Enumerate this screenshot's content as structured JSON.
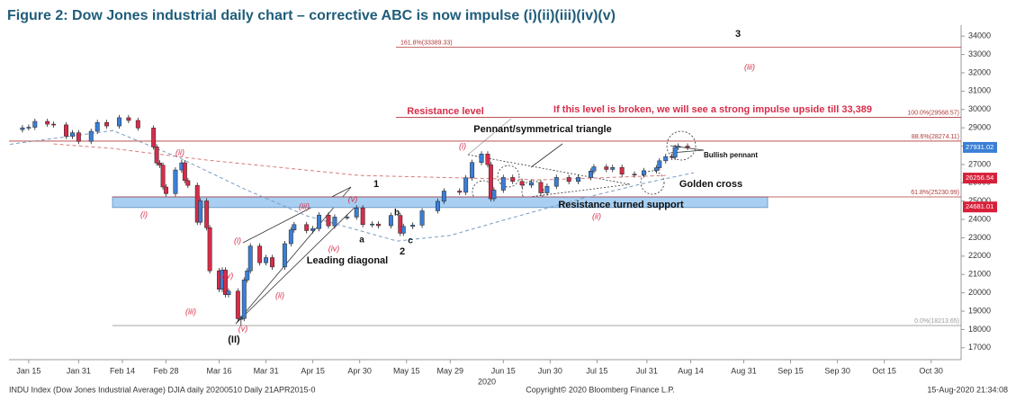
{
  "chart_data": {
    "type": "candlestick",
    "title": "Figure 2: Dow Jones industrial daily chart – corrective ABC is now impulse (i)(ii)(iii)(iv)(v)",
    "year_label": "2020",
    "footer_left": "INDU Index (Dow Jones Industrial Average) DJIA daily 20200510  Daily 21APR2015-0",
    "footer_center": "Copyright© 2020 Bloomberg Finance L.P.",
    "footer_right": "15-Aug-2020 21:34:08",
    "xlim": [
      8.7,
      313.6
    ],
    "ylim": [
      16500,
      34500
    ],
    "xticks": [
      {
        "value": 15,
        "label": "Jan 15"
      },
      {
        "value": 31,
        "label": "Jan 31"
      },
      {
        "value": 45,
        "label": "Feb 14"
      },
      {
        "value": 59,
        "label": "Feb 28"
      },
      {
        "value": 76,
        "label": "Mar 16"
      },
      {
        "value": 91,
        "label": "Mar 31"
      },
      {
        "value": 106,
        "label": "Apr 15"
      },
      {
        "value": 121,
        "label": "Apr 30"
      },
      {
        "value": 136,
        "label": "May 15"
      },
      {
        "value": 150,
        "label": "May 29"
      },
      {
        "value": 167,
        "label": "Jun 15"
      },
      {
        "value": 182,
        "label": "Jun 30"
      },
      {
        "value": 197,
        "label": "Jul 15"
      },
      {
        "value": 213,
        "label": "Jul 31"
      },
      {
        "value": 227,
        "label": "Aug 14"
      },
      {
        "value": 244,
        "label": "Aug 31"
      },
      {
        "value": 259,
        "label": "Sep 15"
      },
      {
        "value": 274,
        "label": "Sep 30"
      },
      {
        "value": 289,
        "label": "Oct 15"
      },
      {
        "value": 304,
        "label": "Oct 30"
      }
    ],
    "yticks": [
      17000,
      18000,
      19000,
      20000,
      21000,
      22000,
      23000,
      24000,
      25000,
      26000,
      27000,
      28000,
      29000,
      30000,
      31000,
      32000,
      33000,
      34000
    ],
    "up_color": "#3a7fd5",
    "down_color": "#d62d4a",
    "x": [
      13,
      15,
      17,
      21,
      23,
      27,
      29,
      31,
      35,
      37,
      40,
      44,
      47,
      50,
      55,
      56,
      57,
      58,
      59,
      62,
      64,
      65,
      66,
      69,
      70,
      72,
      73,
      76,
      77,
      78,
      79,
      82,
      83,
      84,
      85,
      86,
      89,
      91,
      93,
      97,
      99,
      100,
      104,
      106,
      108,
      111,
      113,
      117,
      120,
      122,
      125,
      127,
      131,
      134,
      135,
      138,
      141,
      146,
      148,
      153,
      155,
      157,
      160,
      162,
      163,
      164,
      167,
      170,
      173,
      176,
      179,
      181,
      184,
      188,
      191,
      195,
      196,
      200,
      202,
      205,
      209,
      212,
      216,
      217,
      219,
      221,
      222,
      223,
      226
    ],
    "ohlc": [
      [
        28900,
        29150,
        28750,
        29000
      ],
      [
        29000,
        29180,
        28850,
        29030
      ],
      [
        29030,
        29500,
        28880,
        29350
      ],
      [
        29350,
        29500,
        29050,
        29200
      ],
      [
        29200,
        29350,
        29010,
        29160
      ],
      [
        29160,
        29310,
        28390,
        28540
      ],
      [
        28540,
        28880,
        28390,
        28730
      ],
      [
        28730,
        28880,
        28110,
        28260
      ],
      [
        28260,
        28960,
        28110,
        28810
      ],
      [
        28810,
        29440,
        28660,
        29290
      ],
      [
        29290,
        29440,
        28950,
        29100
      ],
      [
        29100,
        29700,
        28950,
        29550
      ],
      [
        29550,
        29700,
        29250,
        29400
      ],
      [
        29400,
        29550,
        28840,
        28990
      ],
      [
        28990,
        29140,
        27810,
        27960
      ],
      [
        27960,
        28110,
        26930,
        27080
      ],
      [
        27080,
        27230,
        26810,
        26960
      ],
      [
        26960,
        27110,
        25620,
        25770
      ],
      [
        25770,
        25920,
        25260,
        25410
      ],
      [
        25410,
        26850,
        25260,
        26700
      ],
      [
        26700,
        27240,
        26550,
        27090
      ],
      [
        27090,
        27240,
        25970,
        26120
      ],
      [
        26120,
        26270,
        25710,
        25860
      ],
      [
        25860,
        26010,
        23700,
        23850
      ],
      [
        23850,
        25160,
        23700,
        25010
      ],
      [
        25010,
        25160,
        23400,
        23550
      ],
      [
        23550,
        23700,
        21050,
        21200
      ],
      [
        21200,
        21350,
        20040,
        20190
      ],
      [
        20190,
        21390,
        20040,
        21240
      ],
      [
        21240,
        21390,
        19750,
        19900
      ],
      [
        19900,
        20240,
        19750,
        20090
      ],
      [
        20090,
        20240,
        18440,
        18590
      ],
      [
        18590,
        18750,
        18200,
        18600
      ],
      [
        18600,
        20850,
        18450,
        20700
      ],
      [
        20700,
        21350,
        20550,
        21200
      ],
      [
        21200,
        22700,
        21050,
        22550
      ],
      [
        22550,
        22700,
        21490,
        21640
      ],
      [
        21640,
        22070,
        21490,
        21920
      ],
      [
        21920,
        22070,
        21260,
        21410
      ],
      [
        21410,
        22830,
        21260,
        22680
      ],
      [
        22680,
        23580,
        22530,
        23430
      ],
      [
        23430,
        23870,
        23280,
        23720
      ],
      [
        23720,
        23870,
        23240,
        23390
      ],
      [
        23390,
        23650,
        23240,
        23500
      ],
      [
        23500,
        24390,
        23350,
        24240
      ],
      [
        24240,
        24390,
        23500,
        23650
      ],
      [
        23650,
        24280,
        23500,
        24130
      ],
      [
        24130,
        24280,
        23980,
        24130
      ],
      [
        24130,
        24780,
        23980,
        24630
      ],
      [
        24630,
        24780,
        23570,
        23720
      ],
      [
        23720,
        23900,
        23570,
        23750
      ],
      [
        23750,
        23900,
        23510,
        23660
      ],
      [
        23660,
        24370,
        23510,
        24220
      ],
      [
        24220,
        24370,
        23100,
        23250
      ],
      [
        23250,
        23770,
        23100,
        23620
      ],
      [
        23620,
        23840,
        23470,
        23690
      ],
      [
        23690,
        24620,
        23540,
        24470
      ],
      [
        24470,
        25140,
        24320,
        24990
      ],
      [
        24990,
        25700,
        24840,
        25550
      ],
      [
        25550,
        25700,
        25330,
        25480
      ],
      [
        25480,
        26420,
        25330,
        26270
      ],
      [
        26270,
        27260,
        26120,
        27110
      ],
      [
        27110,
        27720,
        26960,
        27570
      ],
      [
        27570,
        27720,
        26840,
        26990
      ],
      [
        26990,
        27140,
        24980,
        25130
      ],
      [
        25130,
        25750,
        24980,
        25600
      ],
      [
        25600,
        26440,
        25450,
        26290
      ],
      [
        26290,
        26440,
        25930,
        26080
      ],
      [
        26080,
        26230,
        25720,
        25870
      ],
      [
        25870,
        26170,
        25720,
        26020
      ],
      [
        26020,
        26170,
        25300,
        25450
      ],
      [
        25450,
        25960,
        25300,
        25810
      ],
      [
        25810,
        26440,
        25660,
        26290
      ],
      [
        26290,
        26440,
        25920,
        26070
      ],
      [
        26070,
        26440,
        25920,
        26290
      ],
      [
        26290,
        26790,
        26140,
        26640
      ],
      [
        26640,
        27020,
        26490,
        26870
      ],
      [
        26870,
        27020,
        26580,
        26730
      ],
      [
        26730,
        26990,
        26580,
        26840
      ],
      [
        26840,
        26990,
        26320,
        26470
      ],
      [
        26470,
        26620,
        26280,
        26430
      ],
      [
        26430,
        26810,
        26280,
        26660
      ],
      [
        26660,
        26970,
        26510,
        26820
      ],
      [
        26820,
        27350,
        26670,
        27200
      ],
      [
        27200,
        27580,
        27050,
        27430
      ],
      [
        27430,
        27580,
        27240,
        27390
      ],
      [
        27390,
        28080,
        27240,
        27930
      ],
      [
        27930,
        28150,
        27780,
        28000
      ],
      [
        28000,
        28150,
        27780,
        27931
      ]
    ],
    "moving_averages": [
      {
        "color": "#d97a7a",
        "x": [
          23,
          42,
          72,
          121,
          179,
          219
        ],
        "values": [
          28120,
          27870,
          27240,
          26400,
          26160,
          26400
        ]
      },
      {
        "color": "#7a9cc0",
        "x": [
          9,
          42,
          63,
          84,
          104,
          133,
          150,
          167,
          193,
          213,
          228
        ],
        "values": [
          28100,
          28850,
          27380,
          25670,
          24200,
          22820,
          23130,
          23960,
          25180,
          26010,
          26550
        ]
      }
    ],
    "levels": [
      {
        "label": "161.8%(33389.33)",
        "value": 33389.33,
        "color": "#b03a3a"
      },
      {
        "label": "100.0%(29568.57)",
        "value": 29568.57,
        "color": "#b03a3a"
      },
      {
        "label": "88.6%(28274.11)",
        "value": 28274.11,
        "color": "#b03a3a"
      },
      {
        "label": "61.8%(25230.99)",
        "value": 25230.99,
        "color": "#b03a3a"
      },
      {
        "label": "0.0%(18213.65)",
        "value": 18213.65,
        "color": "#999999"
      }
    ],
    "support_band": [
      24650,
      25230.99
    ],
    "band_color": "#a8cff2",
    "price_tags": [
      {
        "value": 27931.02,
        "color": "#3a7fd5"
      },
      {
        "value": 26256.54,
        "color": "#d8203a"
      },
      {
        "value": 24681.01,
        "color": "#d8203a"
      }
    ],
    "annotations": [
      {
        "text": "3",
        "color": "#111111"
      },
      {
        "text": "(iii)",
        "color": "#d62d4a"
      },
      {
        "text": "Resistance level",
        "color": "#d62d4a"
      },
      {
        "text": "If this level is broken, we will see a strong impulse upside till 33,389",
        "color": "#d62d4a"
      },
      {
        "text": "Pennant/symmetrical triangle",
        "color": "#111111"
      },
      {
        "text": "(i)",
        "color": "#d62d4a"
      },
      {
        "text": "Bullish pennant",
        "color": "#111111"
      },
      {
        "text": "Golden cross",
        "color": "#111111"
      },
      {
        "text": "1",
        "color": "#111111"
      },
      {
        "text": "(v)",
        "color": "#d62d4a"
      },
      {
        "text": "(iii)",
        "color": "#d62d4a"
      },
      {
        "text": "(i)",
        "color": "#d62d4a"
      },
      {
        "text": "Resistance turned support",
        "color": "#111111"
      },
      {
        "text": "(ii)",
        "color": "#d62d4a"
      },
      {
        "text": "b",
        "color": "#111111"
      },
      {
        "text": "a",
        "color": "#111111"
      },
      {
        "text": "c",
        "color": "#111111"
      },
      {
        "text": "2",
        "color": "#111111"
      },
      {
        "text": "(i)",
        "color": "#d62d4a"
      },
      {
        "text": "(iv)",
        "color": "#d62d4a"
      },
      {
        "text": "Leading diagonal",
        "color": "#111111"
      },
      {
        "text": "(iv)",
        "color": "#d62d4a"
      },
      {
        "text": "(ii)",
        "color": "#d62d4a"
      },
      {
        "text": "(iii)",
        "color": "#d62d4a"
      },
      {
        "text": "(v)",
        "color": "#d62d4a"
      },
      {
        "text": "(II)",
        "color": "#111111"
      },
      {
        "text": "(ii)",
        "color": "#d62d4a"
      }
    ]
  }
}
